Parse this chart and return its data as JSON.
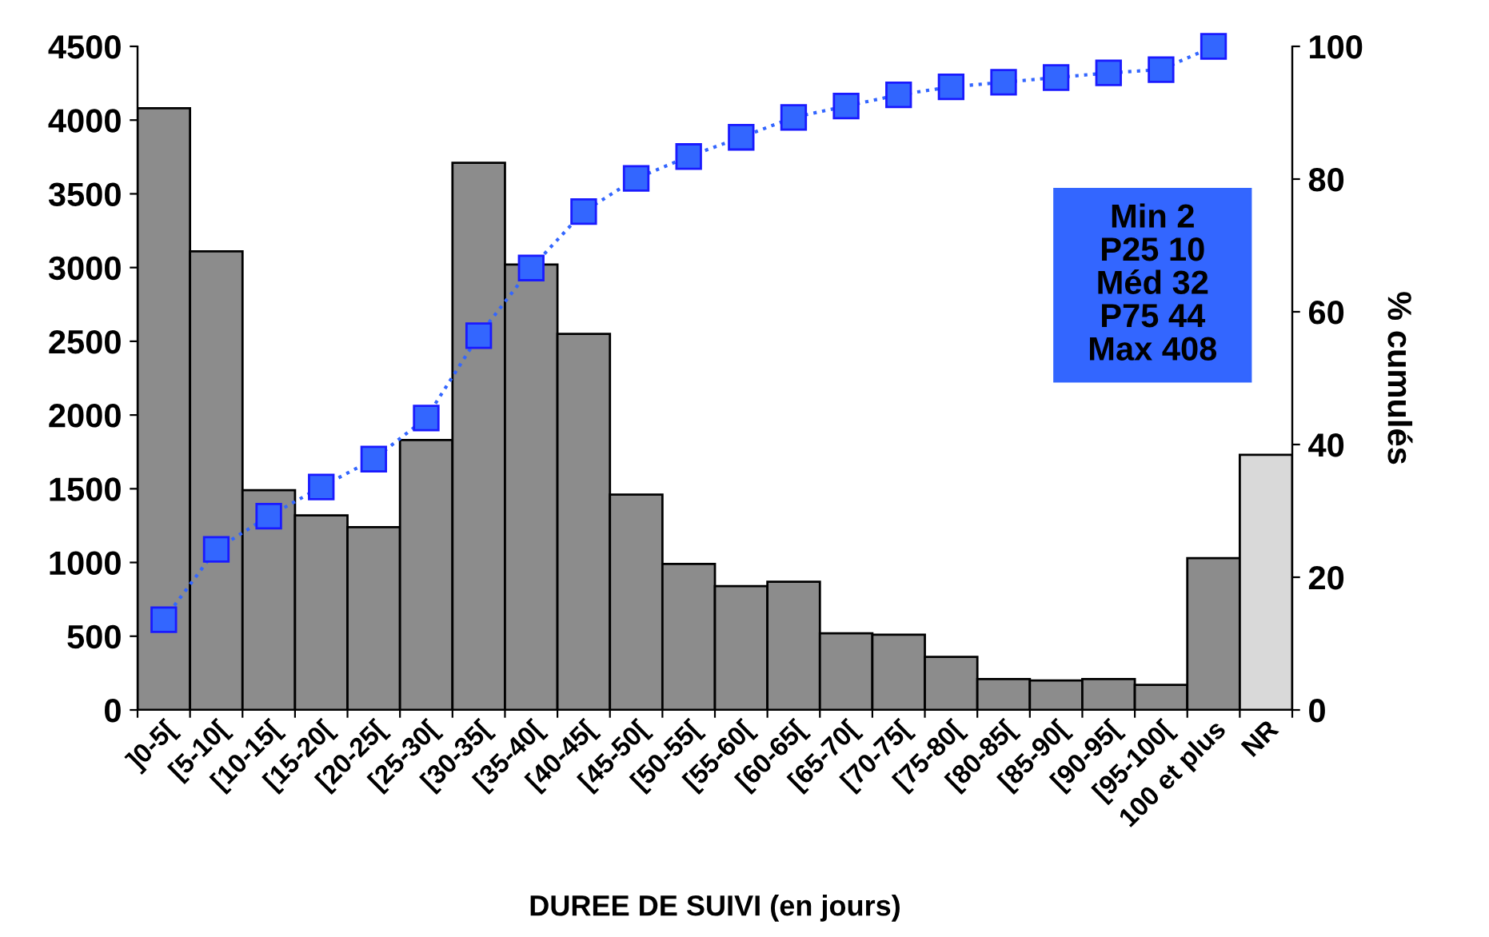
{
  "chart_data": {
    "type": "bar",
    "xlabel": "DUREE DE SUIVI (en jours)",
    "y2label": "% cumulés",
    "categories": [
      "]0-5[",
      "[5-10[",
      "[10-15[",
      "[15-20[",
      "[20-25[",
      "[25-30[",
      "[30-35[",
      "[35-40[",
      "[40-45[",
      "[45-50[",
      "[50-55[",
      "[55-60[",
      "[60-65[",
      "[65-70[",
      "[70-75[",
      "[75-80[",
      "[80-85[",
      "[85-90[",
      "[90-95[",
      "[95-100[",
      "100 et plus",
      "NR"
    ],
    "series": [
      {
        "colors": [
          "#8c8c8c",
          "#8c8c8c",
          "#8c8c8c",
          "#8c8c8c",
          "#8c8c8c",
          "#8c8c8c",
          "#8c8c8c",
          "#8c8c8c",
          "#8c8c8c",
          "#8c8c8c",
          "#8c8c8c",
          "#8c8c8c",
          "#8c8c8c",
          "#8c8c8c",
          "#8c8c8c",
          "#8c8c8c",
          "#8c8c8c",
          "#8c8c8c",
          "#8c8c8c",
          "#8c8c8c",
          "#8c8c8c",
          "#d9d9d9"
        ],
        "values": [
          4080,
          3110,
          1490,
          1320,
          1240,
          1830,
          3710,
          3020,
          2550,
          1460,
          990,
          840,
          870,
          520,
          510,
          360,
          210,
          200,
          210,
          170,
          1030,
          1730
        ]
      },
      {
        "type": "line",
        "axis": "y2",
        "color": "#3366ff",
        "marker": "square",
        "line_style": "dotted",
        "values": [
          13.6,
          24.2,
          29.2,
          33.6,
          37.8,
          44.0,
          56.4,
          66.6,
          75.1,
          80.1,
          83.4,
          86.3,
          89.3,
          91.0,
          92.7,
          93.9,
          94.6,
          95.3,
          96.0,
          96.5,
          100,
          null
        ]
      }
    ],
    "ylim": [
      0,
      4500
    ],
    "yticks": [
      0,
      500,
      1000,
      1500,
      2000,
      2500,
      3000,
      3500,
      4000,
      4500
    ],
    "y2lim": [
      0,
      100
    ],
    "y2ticks": [
      0,
      20,
      40,
      60,
      80,
      100
    ],
    "annotations": [
      "Min 2",
      "P25 10",
      "Méd 32",
      "P75 44",
      "Max 408"
    ],
    "grid": false,
    "legend": false
  }
}
